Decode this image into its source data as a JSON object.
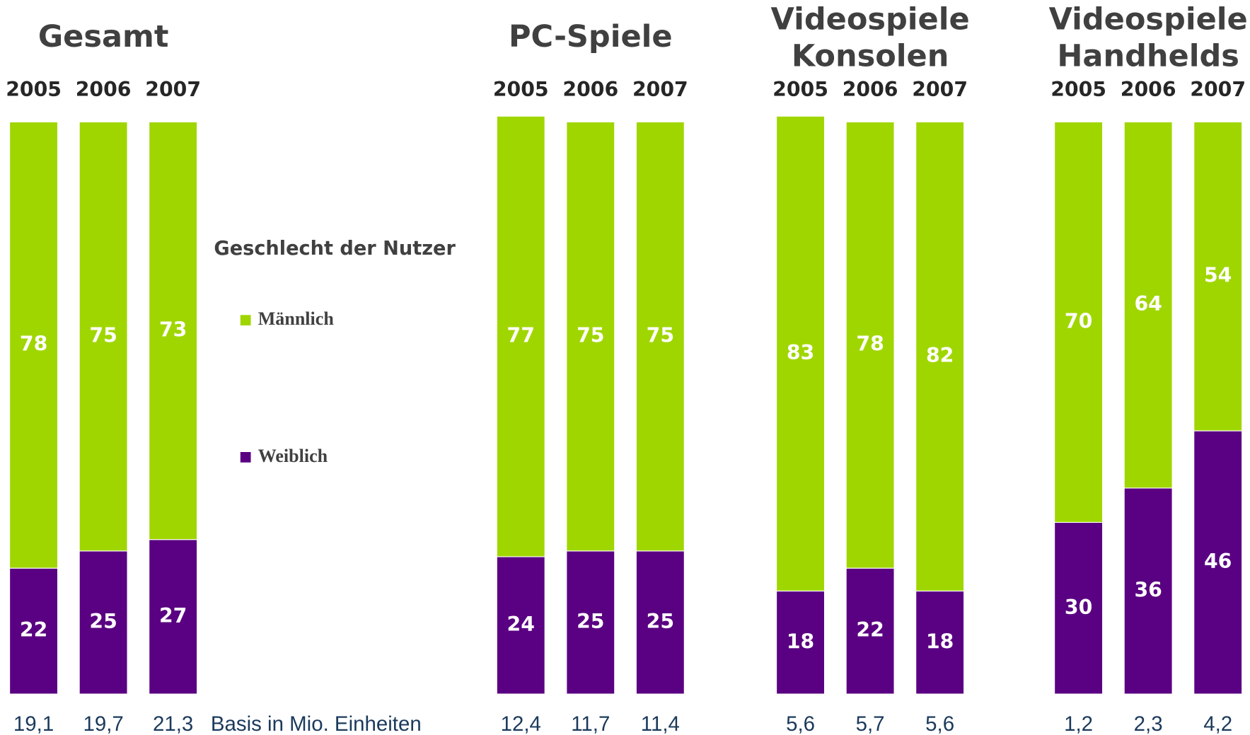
{
  "chart_data": [
    {
      "type": "bar",
      "title": "Gesamt",
      "categories": [
        "2005",
        "2006",
        "2007"
      ],
      "series": [
        {
          "name": "Männlich",
          "color": "#a0d600",
          "values": [
            78,
            75,
            73
          ]
        },
        {
          "name": "Weiblich",
          "color": "#5a0082",
          "values": [
            22,
            25,
            27
          ]
        }
      ],
      "basis": [
        19.1,
        19.7,
        21.3
      ],
      "basis_labels": [
        "19,1",
        "19,7",
        "21,3"
      ],
      "basis_label": "Basis in Mio. Einheiten",
      "legend_title": "Geschlecht der Nutzer",
      "ylim": [
        0,
        100
      ]
    },
    {
      "type": "bar",
      "title": "PC-Spiele",
      "categories": [
        "2005",
        "2006",
        "2007"
      ],
      "series": [
        {
          "color": "#a0d600",
          "values": [
            77,
            75,
            75
          ]
        },
        {
          "color": "#5a0082",
          "values": [
            24,
            25,
            25
          ]
        }
      ],
      "basis": [
        12.4,
        11.7,
        11.4
      ],
      "basis_labels": [
        "12,4",
        "11,7",
        "11,4"
      ],
      "ylim": [
        0,
        100
      ]
    },
    {
      "type": "bar",
      "title": "Videospiele Konsolen",
      "categories": [
        "2005",
        "2006",
        "2007"
      ],
      "series": [
        {
          "color": "#a0d600",
          "values": [
            83,
            78,
            82
          ]
        },
        {
          "color": "#5a0082",
          "values": [
            18,
            22,
            18
          ]
        }
      ],
      "basis": [
        5.6,
        5.7,
        5.6
      ],
      "basis_labels": [
        "5,6",
        "5,7",
        "5,6"
      ],
      "ylim": [
        0,
        100
      ]
    },
    {
      "type": "bar",
      "title": "Videospiele Handhelds",
      "categories": [
        "2005",
        "2006",
        "2007"
      ],
      "series": [
        {
          "color": "#a0d600",
          "values": [
            70,
            64,
            54
          ]
        },
        {
          "color": "#5a0082",
          "values": [
            30,
            36,
            46
          ]
        }
      ],
      "basis": [
        1.2,
        2.3,
        4.2
      ],
      "basis_labels": [
        "1,2",
        "2,3",
        "4,2"
      ],
      "ylim": [
        0,
        100
      ]
    }
  ]
}
